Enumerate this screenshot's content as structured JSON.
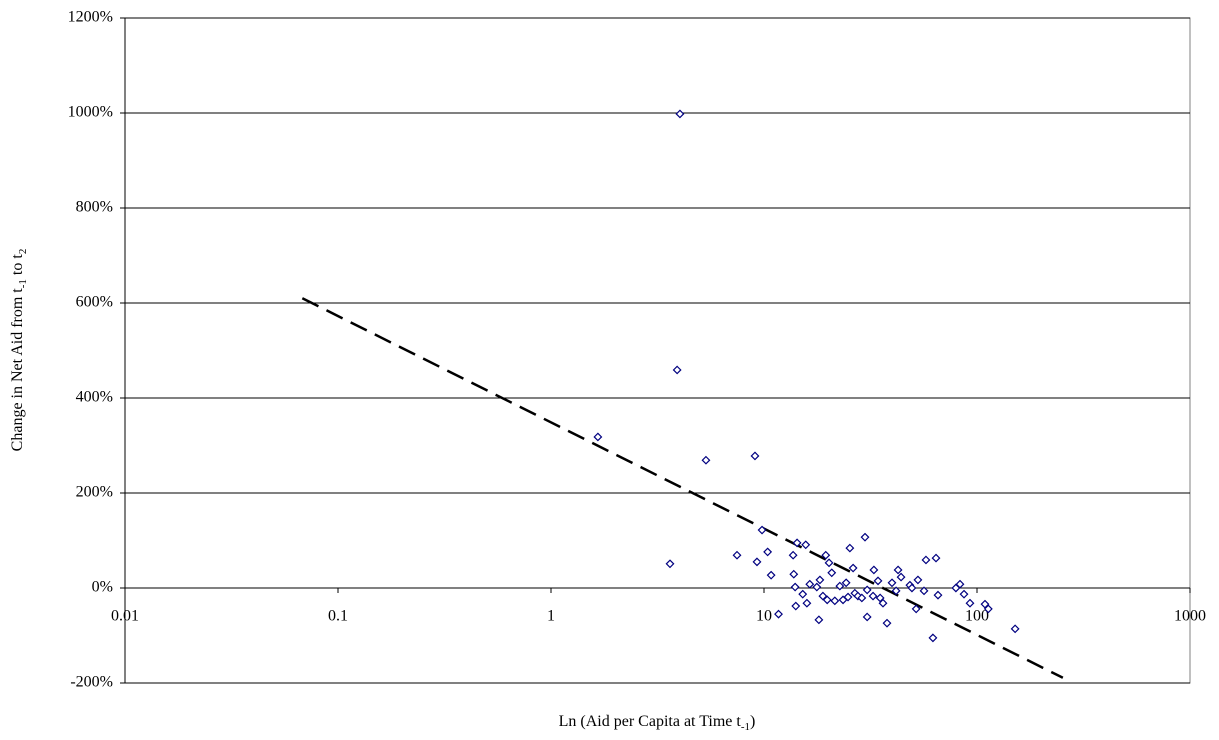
{
  "chart_data": {
    "type": "scatter",
    "xlabel": [
      "Ln (Aid per Capita at Time t",
      "-1",
      ")"
    ],
    "ylabel": [
      "Change in Net Aid from t",
      "-1",
      " to t",
      "2"
    ],
    "log_x": true,
    "grid": true,
    "xlim": [
      0.01,
      1000
    ],
    "xticks": [
      0.01,
      0.1,
      1,
      10,
      100,
      1000
    ],
    "ylim": [
      -200,
      1200
    ],
    "yticks": [
      {
        "value": -200,
        "label": "-200%"
      },
      {
        "value": 0,
        "label": "0%"
      },
      {
        "value": 200,
        "label": "200%"
      },
      {
        "value": 400,
        "label": "400%"
      },
      {
        "value": 600,
        "label": "600%"
      },
      {
        "value": 800,
        "label": "800%"
      },
      {
        "value": 1000,
        "label": "1000%"
      },
      {
        "value": 1200,
        "label": "1200%"
      }
    ],
    "series": [
      {
        "color": "#000080",
        "x": [
          4.03,
          3.91,
          1.66,
          5.34,
          9.07,
          3.62,
          7.47,
          9.79,
          9.27,
          10.4,
          10.8,
          11.7,
          13.7,
          13.8,
          14.0,
          14.1,
          14.3,
          15.7,
          15.2,
          15.9,
          16.4,
          17.7,
          18.1,
          18.3,
          18.9,
          19.5,
          19.8,
          20.2,
          20.8,
          21.5,
          22.7,
          23.5,
          24.3,
          24.8,
          25.3,
          26.2,
          26.7,
          27.6,
          28.8,
          29.8,
          30.5,
          30.5,
          32.5,
          32.8,
          34.3,
          35.1,
          36.2,
          37.8,
          39.9,
          41.7,
          42.6,
          44.0,
          48.4,
          49.5,
          51.8,
          52.8,
          56.4,
          57.6,
          62.1,
          64.2,
          65.6,
          79.6,
          83.2,
          86.9,
          92.7,
          109,
          113,
          151
        ],
        "values": [
          998,
          459,
          318,
          269,
          278,
          51,
          69,
          122,
          55,
          76,
          27,
          -55,
          69,
          29,
          2,
          -38,
          95,
          91,
          -13,
          -32,
          8,
          2,
          -67,
          17,
          -17,
          69,
          -25,
          53,
          32,
          -27,
          4,
          -25,
          11,
          -19,
          84,
          42,
          -11,
          -17,
          -21,
          107,
          -61,
          -4,
          -17,
          38,
          15,
          -21,
          -32,
          -74,
          11,
          -6,
          38,
          23,
          6,
          0,
          -44,
          17,
          -6,
          59,
          -105,
          63,
          -15,
          0,
          8,
          -13,
          -32,
          -34,
          -44,
          -86
        ]
      }
    ],
    "trendline": {
      "x": [
        0.068,
        253
      ],
      "values": [
        610,
        -189
      ],
      "color": "#000000",
      "dashed": true
    }
  }
}
